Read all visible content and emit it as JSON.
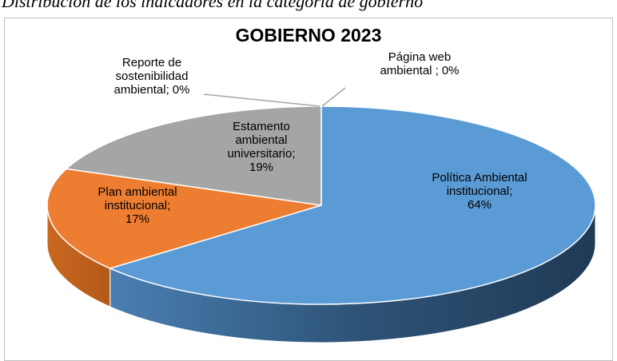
{
  "chart_data": {
    "type": "pie",
    "caption": "Distribución de los indicadores en la categoría de gobierno",
    "title": "GOBIERNO 2023",
    "categories": [
      "Política Ambiental institucional;",
      "Plan ambiental institucional;",
      "Estamento ambiental universitario;",
      "Reporte de sostenibilidad ambiental;",
      "Página web ambiental ;"
    ],
    "values": [
      64,
      17,
      19,
      0,
      0
    ],
    "value_labels": [
      "64%",
      "17%",
      "19%",
      "0%",
      "0%"
    ],
    "colors": [
      "#5b9bd5",
      "#ed7d31",
      "#a5a5a5",
      "#ffc000",
      "#4472c4"
    ]
  }
}
